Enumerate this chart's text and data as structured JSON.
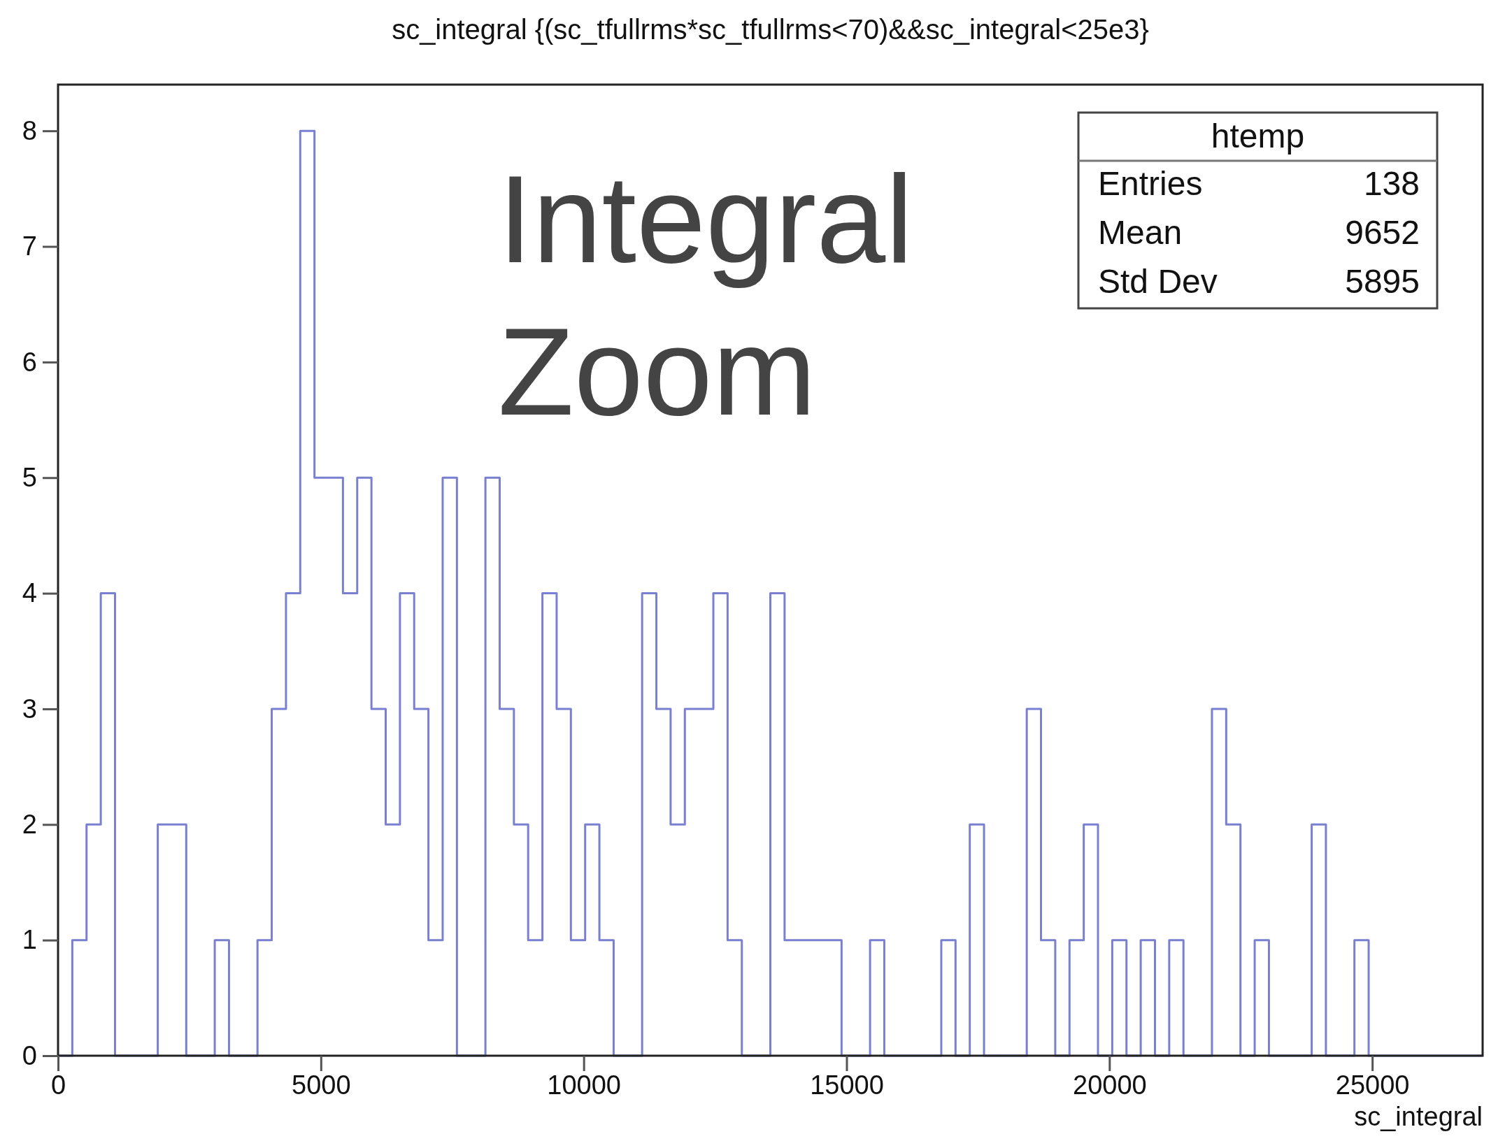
{
  "chart_data": {
    "type": "histogram",
    "title": "sc_integral {(sc_tfullrms*sc_tfullrms<70)&&sc_integral<25e3}",
    "xlabel": "sc_integral",
    "bins": [
      0,
      271,
      542,
      813,
      1084,
      1355,
      1626,
      1897,
      2168,
      2439,
      2710,
      2981,
      3252,
      3523,
      3794,
      4065,
      4336,
      4607,
      4878,
      5149,
      5420,
      5691,
      5962,
      6233,
      6504,
      6775,
      7046,
      7317,
      7588,
      7859,
      8130,
      8401,
      8672,
      8943,
      9214,
      9485,
      9756,
      10027,
      10298,
      10569,
      10840,
      11111,
      11382,
      11653,
      11924,
      12195,
      12466,
      12737,
      13008,
      13279,
      13550,
      13821,
      14092,
      14363,
      14634,
      14905,
      15176,
      15447,
      15718,
      15989,
      16260,
      16531,
      16802,
      17073,
      17344,
      17615,
      17886,
      18157,
      18428,
      18699,
      18970,
      19241,
      19512,
      19783,
      20054,
      20325,
      20596,
      20867,
      21138,
      21409,
      21680,
      21951,
      22222,
      22493,
      22764,
      23035,
      23306,
      23577,
      23848,
      24119,
      24390,
      24661,
      24932,
      25203,
      25474,
      25745,
      26016,
      26287,
      26558,
      26829,
      27100
    ],
    "values": [
      0,
      1,
      2,
      4,
      0,
      0,
      0,
      2,
      2,
      0,
      0,
      1,
      0,
      0,
      1,
      3,
      4,
      8,
      5,
      5,
      4,
      5,
      3,
      2,
      4,
      3,
      1,
      5,
      0,
      0,
      5,
      3,
      2,
      1,
      4,
      3,
      1,
      2,
      1,
      0,
      0,
      4,
      3,
      2,
      3,
      3,
      4,
      1,
      0,
      0,
      4,
      1,
      1,
      1,
      1,
      0,
      0,
      1,
      0,
      0,
      0,
      0,
      1,
      0,
      2,
      0,
      0,
      0,
      3,
      1,
      0,
      1,
      2,
      0,
      1,
      0,
      1,
      0,
      1,
      0,
      0,
      3,
      2,
      0,
      1,
      0,
      0,
      0,
      2,
      0,
      0,
      1,
      0,
      0,
      0,
      0,
      0,
      0,
      0,
      0
    ],
    "color": "#7a80d0",
    "xlim": [
      0,
      27100
    ],
    "xticks": [
      0,
      5000,
      10000,
      15000,
      20000,
      25000
    ],
    "ylim": [
      0,
      8.4
    ],
    "yticks": [
      0,
      1,
      2,
      3,
      4,
      5,
      6,
      7,
      8
    ],
    "annotations": [
      "Integral",
      "Zoom",
      "htemp",
      "Entries",
      "138",
      "Mean",
      "9652",
      "Std Dev",
      "5895"
    ]
  }
}
